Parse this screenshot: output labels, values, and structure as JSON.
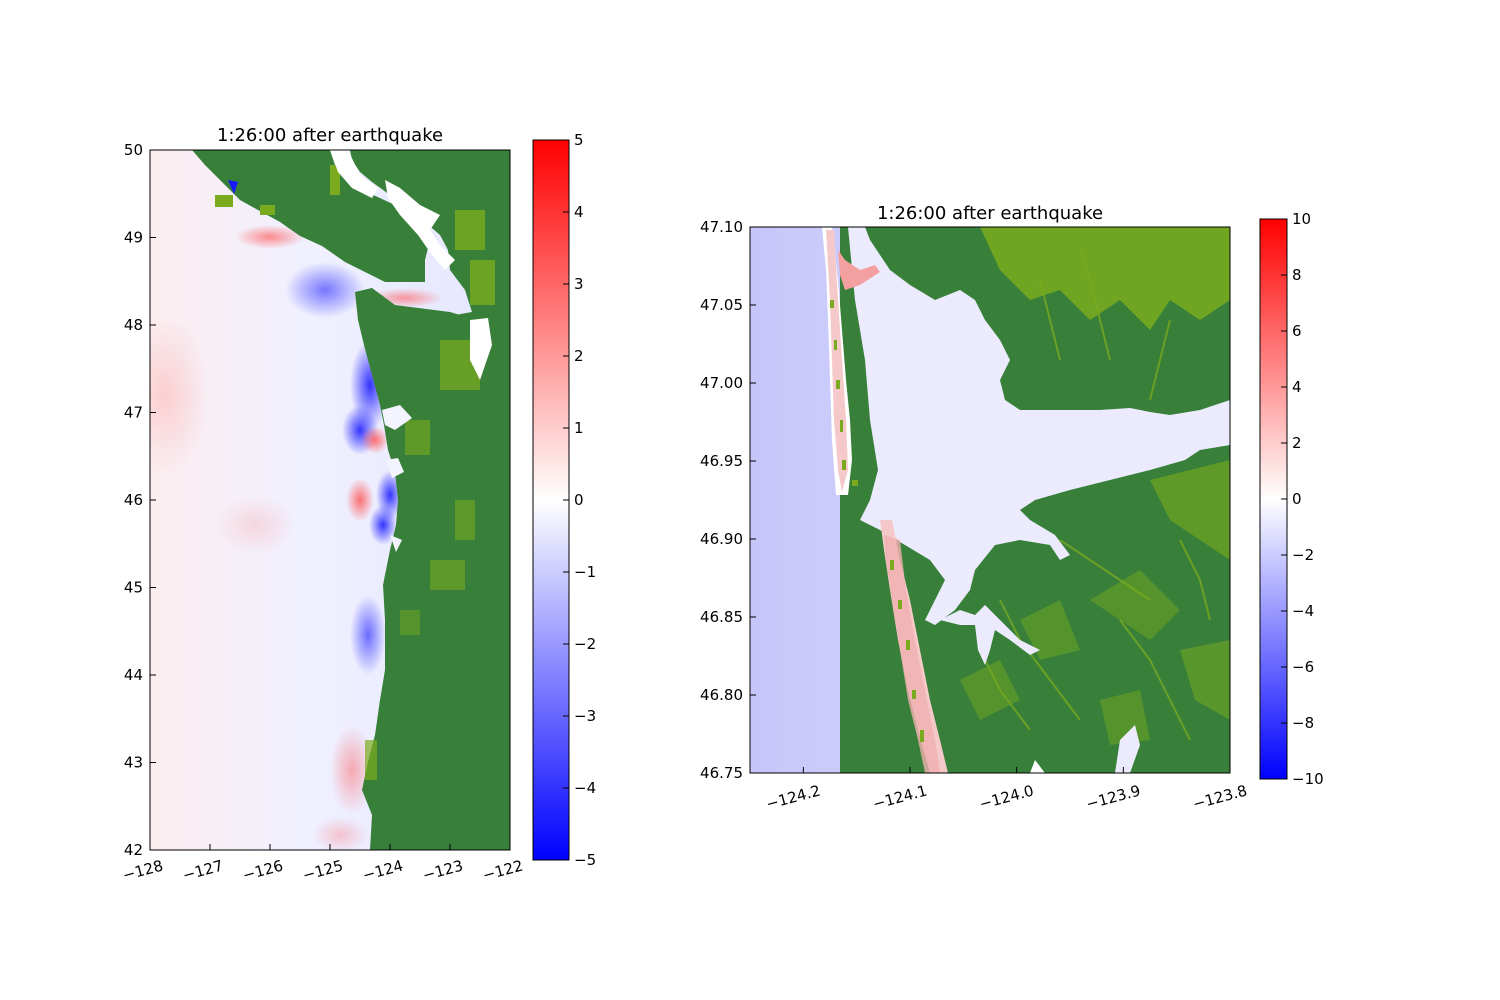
{
  "chart_data": [
    {
      "type": "heatmap",
      "title": "1:26:00 after earthquake",
      "xlim": [
        -128,
        -122
      ],
      "ylim": [
        42,
        50
      ],
      "xticks": [
        "−128",
        "−127",
        "−126",
        "−125",
        "−124",
        "−123",
        "−122"
      ],
      "yticks": [
        "42",
        "43",
        "44",
        "45",
        "46",
        "47",
        "48",
        "49",
        "50"
      ],
      "colorbar": {
        "vmin": -5,
        "vmax": 5,
        "ticks": [
          "−5",
          "−4",
          "−3",
          "−2",
          "−1",
          "0",
          "1",
          "2",
          "3",
          "4",
          "5"
        ],
        "colors": [
          "#0000ff",
          "#ffffff",
          "#ff0000"
        ]
      },
      "land_colors": [
        "#38803a",
        "#7aab1e"
      ],
      "features": [
        {
          "kind": "negative-anomaly",
          "lon": -124.5,
          "lat": 47.3,
          "level": -4.5
        },
        {
          "kind": "positive-anomaly",
          "lon": -124.3,
          "lat": 46.6,
          "level": 2.0
        },
        {
          "kind": "negative-anomaly",
          "lon": -124.0,
          "lat": 45.8,
          "level": -4.0
        },
        {
          "kind": "negative-anomaly",
          "lon": -124.4,
          "lat": 44.7,
          "level": -2.5
        },
        {
          "kind": "positive-anomaly",
          "lon": -124.5,
          "lat": 43.0,
          "level": 1.2
        },
        {
          "kind": "positive-anomaly",
          "lon": -127.8,
          "lat": 47.4,
          "level": 0.5
        },
        {
          "kind": "positive-anomaly",
          "lon": -125.9,
          "lat": 49.0,
          "level": 1.5
        },
        {
          "kind": "negative-anomaly",
          "lon": -125.3,
          "lat": 48.5,
          "level": -2.0
        }
      ]
    },
    {
      "type": "heatmap",
      "title": "1:26:00 after earthquake",
      "xlim": [
        -124.25,
        -123.8
      ],
      "ylim": [
        46.75,
        47.1
      ],
      "xticks": [
        "−124.2",
        "−124.1",
        "−124.0",
        "−123.9",
        "−123.8"
      ],
      "yticks": [
        "46.75",
        "46.80",
        "46.85",
        "46.90",
        "46.95",
        "47.00",
        "47.05",
        "47.10"
      ],
      "colorbar": {
        "vmin": -10,
        "vmax": 10,
        "ticks": [
          "−10",
          "−8",
          "−6",
          "−4",
          "−2",
          "0",
          "2",
          "4",
          "6",
          "8",
          "10"
        ],
        "colors": [
          "#0000ff",
          "#ffffff",
          "#ff0000"
        ]
      },
      "land_colors": [
        "#38803a",
        "#7aab1e"
      ],
      "features": [
        {
          "kind": "open-ocean",
          "lon": -124.23,
          "lat": 46.92,
          "level": -3.0
        },
        {
          "kind": "bay-water",
          "lon": -124.0,
          "lat": 46.95,
          "level": -0.6
        },
        {
          "kind": "spit-positive",
          "lon": -124.16,
          "lat": 47.07,
          "level": 2.0
        },
        {
          "kind": "spit-positive",
          "lon": -124.1,
          "lat": 46.8,
          "level": 2.0
        }
      ]
    }
  ]
}
